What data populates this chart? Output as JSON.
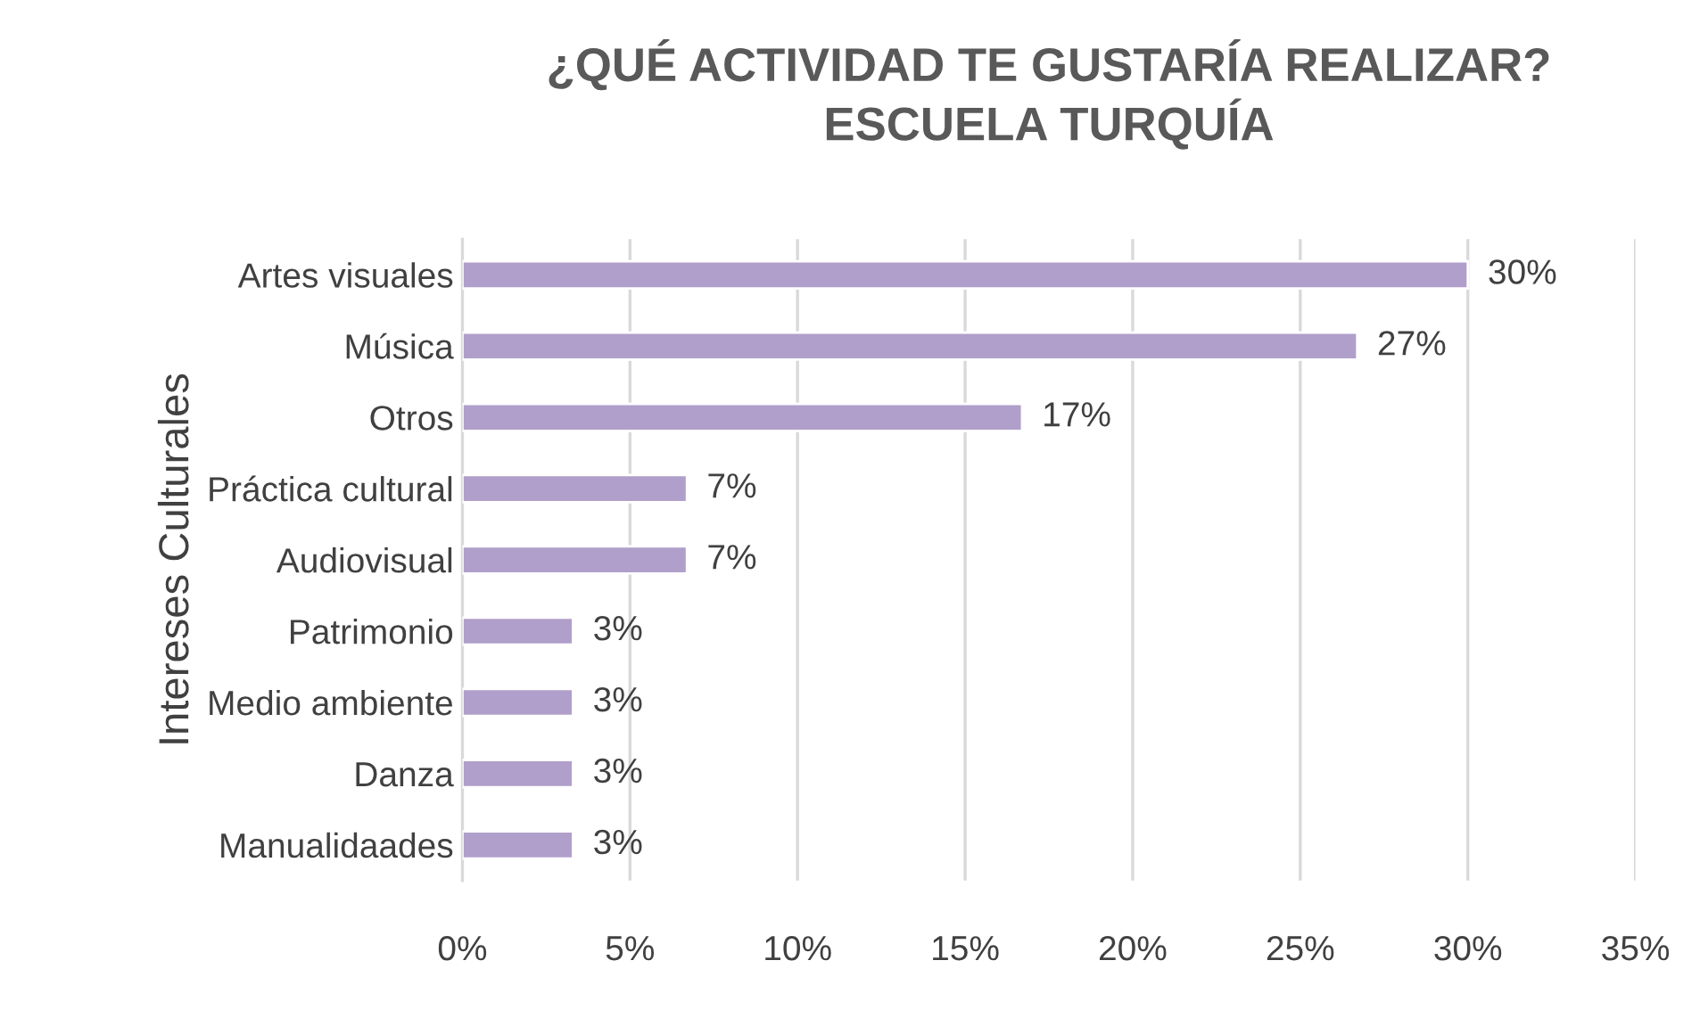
{
  "chart_data": {
    "type": "bar",
    "orientation": "horizontal",
    "title": "¿QUÉ ACTIVIDAD TE GUSTARÍA REALIZAR?\nESCUELA TURQUÍA",
    "ylabel": "Intereses Culturales",
    "categories": [
      "Artes visuales",
      "Música",
      "Otros",
      "Práctica cultural",
      "Audiovisual",
      "Patrimonio",
      "Medio ambiente",
      "Danza",
      "Manualidaades"
    ],
    "values": [
      30,
      26.7,
      16.7,
      6.7,
      6.7,
      3.3,
      3.3,
      3.3,
      3.3
    ],
    "value_labels": [
      "30%",
      "27%",
      "17%",
      "7%",
      "7%",
      "3%",
      "3%",
      "3%",
      "3%"
    ],
    "color": "#b09fca",
    "xlim": [
      0,
      35
    ],
    "xticks": [
      {
        "value": 0,
        "label": "0%"
      },
      {
        "value": 5,
        "label": "5%"
      },
      {
        "value": 10,
        "label": "10%"
      },
      {
        "value": 15,
        "label": "15%"
      },
      {
        "value": 20,
        "label": "20%"
      },
      {
        "value": 25,
        "label": "25%"
      },
      {
        "value": 30,
        "label": "30%"
      },
      {
        "value": 35,
        "label": "35%"
      }
    ],
    "grid": "x",
    "legend": false
  }
}
